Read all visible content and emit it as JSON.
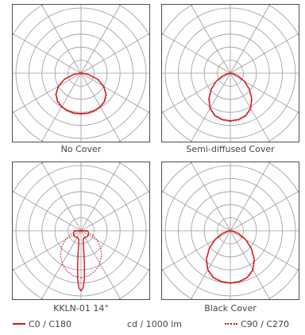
{
  "colors": {
    "curve": "#d7141b",
    "grid": "#9a9a9a",
    "frame": "#4d4d4d",
    "text": "#444444"
  },
  "legend": {
    "c0_c180": "C0 / C180",
    "unit": "cd / 1000 lm",
    "c90_c270": "C90 / C270"
  },
  "chart_data": [
    {
      "type": "polar",
      "caption": "No Cover",
      "grid": true,
      "series": [
        {
          "name": "C0 / C180",
          "style": "solid",
          "angles_deg": [
            0,
            10,
            20,
            30,
            40,
            50,
            60,
            70,
            80,
            90
          ],
          "values": [
            0.62,
            0.62,
            0.61,
            0.59,
            0.56,
            0.5,
            0.4,
            0.27,
            0.12,
            0.02
          ]
        },
        {
          "name": "C90 / C270",
          "style": "dotted",
          "angles_deg": [
            0,
            10,
            20,
            30,
            40,
            50,
            60,
            70,
            80,
            90
          ],
          "values": [
            0.63,
            0.63,
            0.62,
            0.6,
            0.57,
            0.51,
            0.41,
            0.28,
            0.13,
            0.03
          ]
        }
      ]
    },
    {
      "type": "polar",
      "caption": "Semi-diffused Cover",
      "grid": true,
      "series": [
        {
          "name": "C0 / C180",
          "style": "solid",
          "angles_deg": [
            0,
            10,
            20,
            30,
            40,
            50,
            60,
            70,
            80,
            90
          ],
          "values": [
            0.73,
            0.72,
            0.69,
            0.62,
            0.51,
            0.38,
            0.25,
            0.13,
            0.05,
            0.01
          ]
        },
        {
          "name": "C90 / C270",
          "style": "dotted",
          "angles_deg": [
            0,
            10,
            20,
            30,
            40,
            50,
            60,
            70,
            80,
            90
          ],
          "values": [
            0.74,
            0.73,
            0.7,
            0.63,
            0.52,
            0.39,
            0.26,
            0.14,
            0.06,
            0.02
          ]
        }
      ]
    },
    {
      "type": "polar",
      "caption": "KKLN-01 14°",
      "grid": true,
      "series": [
        {
          "name": "C0 / C180",
          "style": "solid",
          "angles_deg": [
            0,
            2,
            4,
            6,
            8,
            10,
            14,
            20,
            30,
            45,
            60,
            75,
            90
          ],
          "values": [
            0.92,
            0.88,
            0.74,
            0.5,
            0.3,
            0.2,
            0.14,
            0.12,
            0.12,
            0.13,
            0.13,
            0.12,
            0.1
          ]
        },
        {
          "name": "C90 / C270",
          "style": "dotted",
          "angles_deg": [
            0,
            10,
            20,
            30,
            40,
            50,
            60,
            70,
            80,
            90
          ],
          "values": [
            0.72,
            0.7,
            0.65,
            0.58,
            0.49,
            0.39,
            0.28,
            0.18,
            0.1,
            0.04
          ]
        }
      ]
    },
    {
      "type": "polar",
      "caption": "Black Cover",
      "grid": true,
      "series": [
        {
          "name": "C0 / C180",
          "style": "solid",
          "angles_deg": [
            0,
            10,
            20,
            30,
            40,
            50,
            60,
            70,
            80,
            90
          ],
          "values": [
            0.8,
            0.79,
            0.76,
            0.69,
            0.57,
            0.42,
            0.27,
            0.14,
            0.05,
            0.01
          ]
        },
        {
          "name": "C90 / C270",
          "style": "dotted",
          "angles_deg": [
            0,
            10,
            20,
            30,
            40,
            50,
            60,
            70,
            80,
            90
          ],
          "values": [
            0.81,
            0.8,
            0.77,
            0.7,
            0.58,
            0.43,
            0.28,
            0.15,
            0.06,
            0.02
          ]
        }
      ]
    }
  ]
}
